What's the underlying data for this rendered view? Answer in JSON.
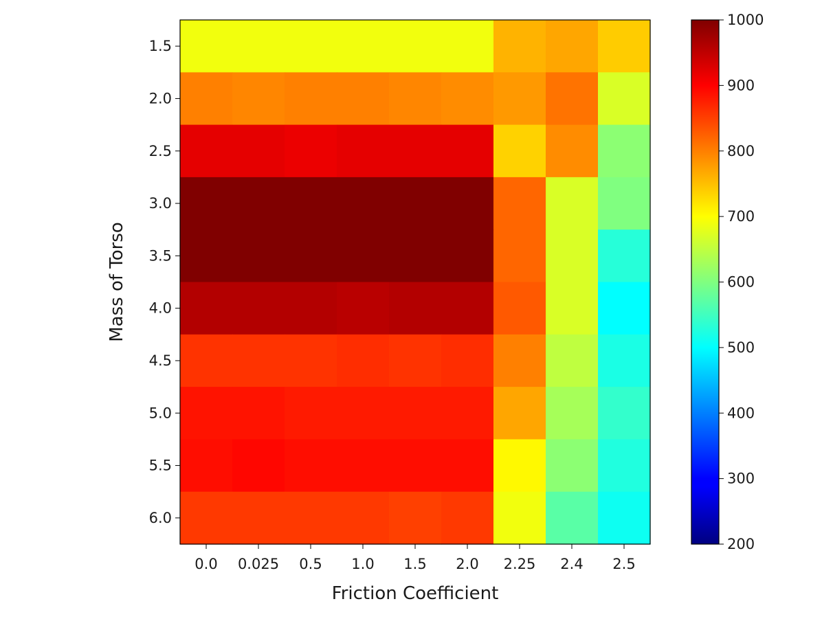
{
  "chart_data": {
    "type": "heatmap",
    "title": "",
    "xlabel": "Friction Coefficient",
    "ylabel": "Mass of Torso",
    "x": [
      "0.0",
      "0.025",
      "0.5",
      "1.0",
      "1.5",
      "2.0",
      "2.25",
      "2.4",
      "2.5"
    ],
    "y": [
      "1.5",
      "2.0",
      "2.5",
      "3.0",
      "3.5",
      "4.0",
      "4.5",
      "5.0",
      "5.5",
      "6.0"
    ],
    "values": [
      [
        690,
        690,
        690,
        690,
        690,
        690,
        760,
        770,
        740
      ],
      [
        800,
        795,
        800,
        800,
        795,
        790,
        780,
        810,
        670
      ],
      [
        920,
        920,
        915,
        920,
        920,
        920,
        735,
        790,
        610
      ],
      [
        1000,
        1000,
        1000,
        1000,
        1000,
        1000,
        820,
        670,
        600
      ],
      [
        1000,
        1000,
        1000,
        1000,
        1000,
        1000,
        820,
        670,
        530
      ],
      [
        960,
        960,
        960,
        955,
        960,
        960,
        830,
        670,
        500
      ],
      [
        860,
        860,
        860,
        865,
        860,
        865,
        800,
        650,
        520
      ],
      [
        885,
        885,
        880,
        880,
        880,
        880,
        770,
        630,
        540
      ],
      [
        890,
        895,
        890,
        890,
        890,
        890,
        705,
        610,
        525
      ],
      [
        855,
        855,
        855,
        855,
        850,
        855,
        690,
        570,
        510
      ]
    ],
    "colorbar": {
      "min": 200,
      "max": 1000,
      "ticks": [
        "200",
        "300",
        "400",
        "500",
        "600",
        "700",
        "800",
        "900",
        "1000"
      ],
      "colormap": "jet"
    },
    "grid": false,
    "legend": "none"
  }
}
